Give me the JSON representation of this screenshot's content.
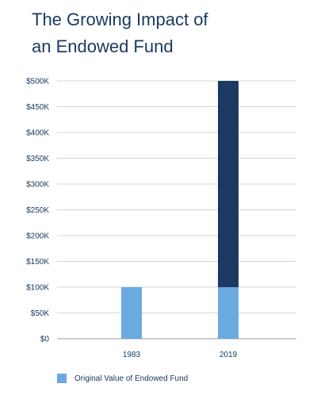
{
  "title": {
    "line1": "The Growing Impact of",
    "line2": "an Endowed Fund"
  },
  "legend": {
    "label": "Original Value of Endowed Fund",
    "color": "#6aaadf"
  },
  "colors": {
    "original": "#6aaadf",
    "growth": "#1b3a62",
    "axis_text": "#1b3a62",
    "grid": "#d4d4d4"
  },
  "chart_data": {
    "type": "bar",
    "stacked": true,
    "categories": [
      "1983",
      "2019"
    ],
    "series": [
      {
        "name": "Original Value of Endowed Fund",
        "values": [
          100000,
          100000
        ],
        "color": "#6aaadf"
      },
      {
        "values": [
          0,
          400000
        ],
        "color": "#1b3a62"
      }
    ],
    "ylim": [
      0,
      500000
    ],
    "yticks": [
      0,
      50000,
      100000,
      150000,
      200000,
      250000,
      300000,
      350000,
      400000,
      450000,
      500000
    ],
    "ytick_labels": [
      "$0",
      "$50K",
      "$100K",
      "$150K",
      "$200K",
      "$250K",
      "$300K",
      "$350K",
      "$400K",
      "$450K",
      "$500K"
    ],
    "xlabel": "",
    "ylabel": "",
    "grid": true,
    "legend_position": "bottom-left"
  }
}
